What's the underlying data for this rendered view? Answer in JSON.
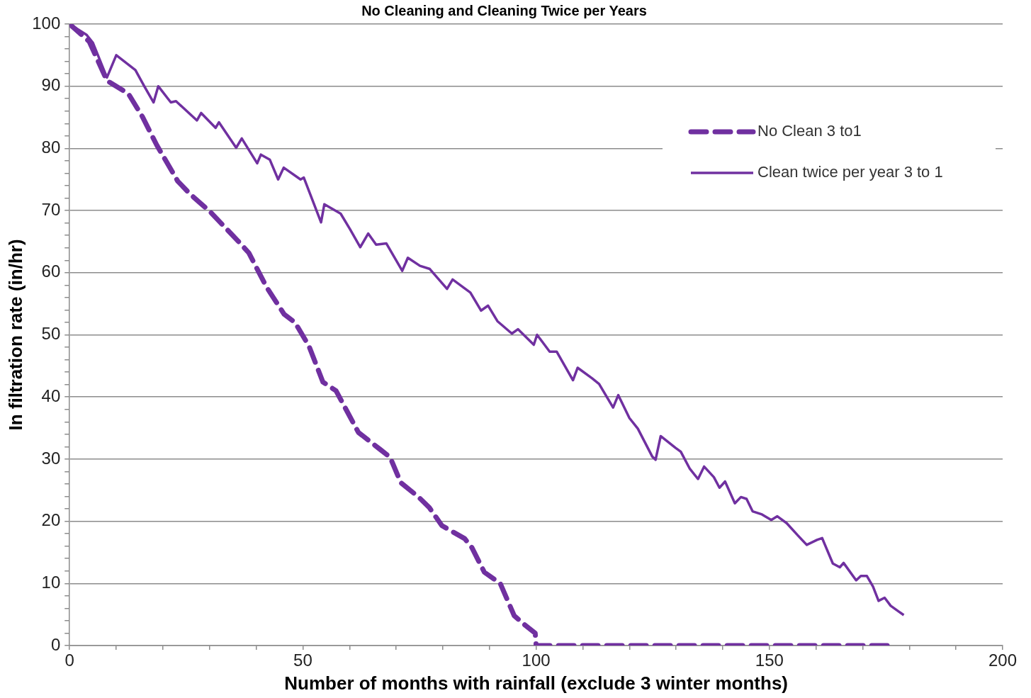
{
  "chart_data": {
    "type": "line",
    "title": "No Cleaning and Cleaning Twice per Years",
    "xlabel": "Number of months with rainfall (exclude 3 winter months)",
    "ylabel": "In filtration rate (in/hr)",
    "xlim": [
      0,
      200
    ],
    "xticks": [
      0,
      {
        "value": 10,
        "label": null
      },
      {
        "value": 20,
        "label": null
      },
      {
        "value": 30,
        "label": null
      },
      {
        "value": 40,
        "label": null
      },
      50,
      {
        "value": 60,
        "label": null
      },
      {
        "value": 70,
        "label": null
      },
      {
        "value": 80,
        "label": null
      },
      {
        "value": 90,
        "label": null
      },
      100,
      {
        "value": 110,
        "label": null
      },
      {
        "value": 120,
        "label": null
      },
      {
        "value": 130,
        "label": null
      },
      {
        "value": 140,
        "label": null
      },
      150,
      {
        "value": 160,
        "label": null
      },
      {
        "value": 170,
        "label": null
      },
      {
        "value": 180,
        "label": null
      },
      {
        "value": 190,
        "label": null
      },
      200
    ],
    "ylim": [
      0,
      100
    ],
    "yticks": [
      0,
      {
        "value": 2,
        "label": null
      },
      {
        "value": 4,
        "label": null
      },
      {
        "value": 6,
        "label": null
      },
      {
        "value": 8,
        "label": null
      },
      10,
      {
        "value": 12,
        "label": null
      },
      {
        "value": 14,
        "label": null
      },
      {
        "value": 16,
        "label": null
      },
      {
        "value": 18,
        "label": null
      },
      20,
      {
        "value": 22,
        "label": null
      },
      {
        "value": 24,
        "label": null
      },
      {
        "value": 26,
        "label": null
      },
      {
        "value": 28,
        "label": null
      },
      30,
      {
        "value": 32,
        "label": null
      },
      {
        "value": 34,
        "label": null
      },
      {
        "value": 36,
        "label": null
      },
      {
        "value": 38,
        "label": null
      },
      40,
      {
        "value": 42,
        "label": null
      },
      {
        "value": 44,
        "label": null
      },
      {
        "value": 46,
        "label": null
      },
      {
        "value": 48,
        "label": null
      },
      50,
      {
        "value": 52,
        "label": null
      },
      {
        "value": 54,
        "label": null
      },
      {
        "value": 56,
        "label": null
      },
      {
        "value": 58,
        "label": null
      },
      60,
      {
        "value": 62,
        "label": null
      },
      {
        "value": 64,
        "label": null
      },
      {
        "value": 66,
        "label": null
      },
      {
        "value": 68,
        "label": null
      },
      70,
      {
        "value": 72,
        "label": null
      },
      {
        "value": 74,
        "label": null
      },
      {
        "value": 76,
        "label": null
      },
      {
        "value": 78,
        "label": null
      },
      80,
      {
        "value": 82,
        "label": null
      },
      {
        "value": 84,
        "label": null
      },
      {
        "value": 86,
        "label": null
      },
      {
        "value": 88,
        "label": null
      },
      90,
      {
        "value": 92,
        "label": null
      },
      {
        "value": 94,
        "label": null
      },
      {
        "value": 96,
        "label": null
      },
      {
        "value": 98,
        "label": null
      },
      100
    ],
    "grid": "y",
    "legend": "top right",
    "marker": "none",
    "series": [
      {
        "name": "No Clean 3 to1",
        "color": "#7030a0",
        "line_style": "dashed",
        "x": [
          0,
          4.2,
          8,
          12.6,
          15.6,
          18.7,
          23.2,
          25.9,
          30,
          36.1,
          38.4,
          42.2,
          46,
          48.3,
          51.3,
          54.3,
          57.1,
          61.9,
          66.5,
          68.7,
          71,
          74.8,
          77.1,
          79.8,
          84.7,
          86.2,
          88.9,
          92.3,
          95.3,
          97.6,
          99.8,
          100,
          110,
          120,
          130,
          140,
          150,
          160,
          170,
          177
        ],
        "values": [
          100,
          97.2,
          90.9,
          88.8,
          85.1,
          80.5,
          74.7,
          72.6,
          69.9,
          65.1,
          63.2,
          57.7,
          53.3,
          52,
          48.2,
          42.4,
          41,
          34.3,
          31.6,
          30.3,
          26.2,
          23.9,
          22.2,
          19.3,
          17.2,
          15.8,
          11.8,
          10,
          4.8,
          3.3,
          2,
          0,
          0,
          0,
          0,
          0,
          0,
          0,
          0,
          0
        ]
      },
      {
        "name": "Clean twice per year 3 to 1",
        "color": "#7030a0",
        "line_style": "solid",
        "x": [
          0,
          3.6,
          5,
          8,
          10,
          14.1,
          16,
          18,
          19,
          21.7,
          22.8,
          27.3,
          28.2,
          31.3,
          32,
          35.7,
          36.9,
          40.2,
          41,
          42.9,
          44.7,
          45.9,
          49.5,
          50.2,
          53.9,
          54.6,
          58.1,
          60.1,
          62.3,
          64,
          65.7,
          67.9,
          71.3,
          72.5,
          75.1,
          77.2,
          80.9,
          82.1,
          85.9,
          88.2,
          89.7,
          91.7,
          94.8,
          96.1,
          99.5,
          100.2,
          102.9,
          104.4,
          107.9,
          108.9,
          112,
          113.5,
          116.5,
          117.6,
          120,
          121.8,
          124.9,
          125.6,
          126.7,
          129.9,
          131,
          132.9,
          134.7,
          136,
          138.1,
          139.3,
          140.5,
          142.6,
          143.9,
          145.1,
          146.4,
          148.4,
          150.4,
          151.7,
          153.7,
          156,
          158,
          160.2,
          161.3,
          163.6,
          165.1,
          165.9,
          168.6,
          169.6,
          170.9,
          172.2,
          173.4,
          174.7,
          176,
          178.8
        ],
        "values": [
          100,
          98.3,
          97,
          91.4,
          95,
          92.6,
          90,
          87.4,
          90,
          87.4,
          87.6,
          84.5,
          85.7,
          83.3,
          84.2,
          80.1,
          81.6,
          77.6,
          79,
          78.2,
          75,
          76.9,
          75,
          75.3,
          68.1,
          71,
          69.5,
          67,
          64.1,
          66.3,
          64.5,
          64.7,
          60.3,
          62.4,
          61.1,
          60.6,
          57.4,
          58.9,
          56.8,
          53.9,
          54.7,
          52.2,
          50.2,
          50.9,
          48.4,
          50,
          47.3,
          47.3,
          42.7,
          44.7,
          43,
          42.1,
          38.3,
          40.3,
          36.6,
          34.9,
          30.4,
          29.9,
          33.7,
          31.8,
          31.2,
          28.5,
          26.8,
          28.8,
          27.1,
          25.4,
          26.4,
          22.9,
          23.9,
          23.6,
          21.6,
          21.1,
          20.2,
          20.8,
          19.7,
          17.8,
          16.2,
          17,
          17.3,
          13.2,
          12.6,
          13.3,
          10.5,
          11.2,
          11.2,
          9.5,
          7.2,
          7.7,
          6.4,
          4.9
        ]
      }
    ]
  }
}
